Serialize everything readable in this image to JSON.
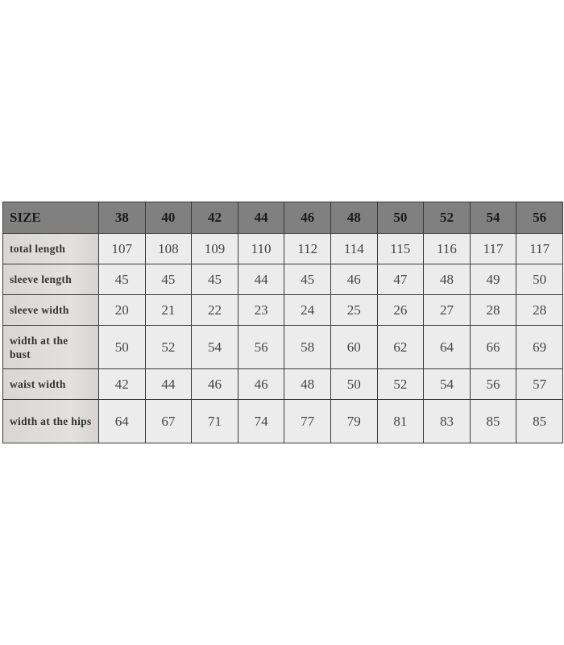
{
  "table": {
    "header_label": "SIZE",
    "sizes": [
      "38",
      "40",
      "42",
      "44",
      "46",
      "48",
      "50",
      "52",
      "54",
      "56"
    ],
    "rows": [
      {
        "label": "total length",
        "values": [
          "107",
          "108",
          "109",
          "110",
          "112",
          "114",
          "115",
          "116",
          "117",
          "117"
        ]
      },
      {
        "label": "sleeve length",
        "values": [
          "45",
          "45",
          "45",
          "44",
          "45",
          "46",
          "47",
          "48",
          "49",
          "50"
        ]
      },
      {
        "label": "sleeve width",
        "values": [
          "20",
          "21",
          "22",
          "23",
          "24",
          "25",
          "26",
          "27",
          "28",
          "28"
        ]
      },
      {
        "label": "width at the bust",
        "values": [
          "50",
          "52",
          "54",
          "56",
          "58",
          "60",
          "62",
          "64",
          "66",
          "69"
        ]
      },
      {
        "label": "waist width",
        "values": [
          "42",
          "44",
          "46",
          "46",
          "48",
          "50",
          "52",
          "54",
          "56",
          "57"
        ]
      },
      {
        "label": "width at the hips",
        "values": [
          "64",
          "67",
          "71",
          "74",
          "77",
          "79",
          "81",
          "83",
          "85",
          "85"
        ]
      }
    ]
  },
  "colors": {
    "header_bg": "#808080",
    "cell_bg": "#ececec",
    "label_bg": "#dcd9d8",
    "border": "#3a3a3a"
  }
}
